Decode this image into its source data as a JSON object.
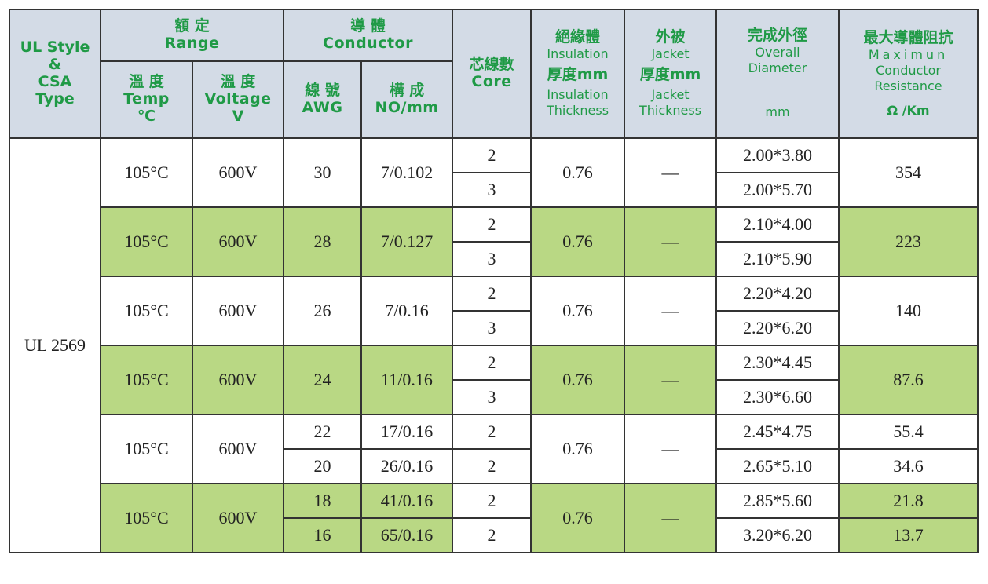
{
  "header": {
    "style_col": [
      "UL Style",
      "&",
      "CSA",
      "Type"
    ],
    "range": {
      "zh": "額 定",
      "en": "Range"
    },
    "temp": {
      "zh": "溫 度",
      "en": "Temp",
      "unit": "℃"
    },
    "voltage": {
      "zh": "溫 度",
      "en": "Voltage",
      "unit": "V"
    },
    "conductor": {
      "zh": "導 體",
      "en": "Conductor"
    },
    "awg": {
      "zh": "線 號",
      "en": "AWG"
    },
    "construction": {
      "zh": "構 成",
      "en": "NO/mm"
    },
    "core": {
      "zh": "芯線數",
      "en": "Core"
    },
    "insulation": {
      "zh": "絕緣體",
      "en": "Insulation",
      "zh2": "厚度mm",
      "en2a": "Insulation",
      "en2b": "Thickness"
    },
    "jacket": {
      "zh": "外被",
      "en": "Jacket",
      "zh2": "厚度mm",
      "en2a": "Jacket",
      "en2b": "Thickness"
    },
    "diameter": {
      "zh": "完成外徑",
      "en_a": "Overall",
      "en_b": "Diameter",
      "unit": "mm"
    },
    "resistance": {
      "zh": "最大導體阻抗",
      "en_a": "Maximun",
      "en_b": "Conductor",
      "en_c": "Resistance",
      "unit": "Ω /Km"
    }
  },
  "style_type": "UL 2569",
  "groups": [
    {
      "temp": "105°C",
      "voltage": "600V",
      "awg": [
        "30"
      ],
      "construction": [
        "7/0.102"
      ],
      "core": [
        "2",
        "3"
      ],
      "insulation": "0.76",
      "jacket": "—",
      "diameter": [
        "2.00*3.80",
        "2.00*5.70"
      ],
      "resistance": [
        "354"
      ]
    },
    {
      "temp": "105°C",
      "voltage": "600V",
      "awg": [
        "28"
      ],
      "construction": [
        "7/0.127"
      ],
      "core": [
        "2",
        "3"
      ],
      "insulation": "0.76",
      "jacket": "—",
      "diameter": [
        "2.10*4.00",
        "2.10*5.90"
      ],
      "resistance": [
        "223"
      ]
    },
    {
      "temp": "105°C",
      "voltage": "600V",
      "awg": [
        "26"
      ],
      "construction": [
        "7/0.16"
      ],
      "core": [
        "2",
        "3"
      ],
      "insulation": "0.76",
      "jacket": "—",
      "diameter": [
        "2.20*4.20",
        "2.20*6.20"
      ],
      "resistance": [
        "140"
      ]
    },
    {
      "temp": "105°C",
      "voltage": "600V",
      "awg": [
        "24"
      ],
      "construction": [
        "11/0.16"
      ],
      "core": [
        "2",
        "3"
      ],
      "insulation": "0.76",
      "jacket": "—",
      "diameter": [
        "2.30*4.45",
        "2.30*6.60"
      ],
      "resistance": [
        "87.6"
      ]
    },
    {
      "temp": "105°C",
      "voltage": "600V",
      "awg": [
        "22",
        "20"
      ],
      "construction": [
        "17/0.16",
        "26/0.16"
      ],
      "core": [
        "2",
        "2"
      ],
      "insulation": "0.76",
      "jacket": "—",
      "diameter": [
        "2.45*4.75",
        "2.65*5.10"
      ],
      "resistance": [
        "55.4",
        "34.6"
      ]
    },
    {
      "temp": "105°C",
      "voltage": "600V",
      "awg": [
        "18",
        "16"
      ],
      "construction": [
        "41/0.16",
        "65/0.16"
      ],
      "core": [
        "2",
        "2"
      ],
      "insulation": "0.76",
      "jacket": "—",
      "diameter": [
        "2.85*5.60",
        "3.20*6.20"
      ],
      "resistance": [
        "21.8",
        "13.7"
      ]
    }
  ],
  "colors": {
    "header_bg": "#d3dbe6",
    "header_text": "#1f9a46",
    "highlight_row": "#b9d884",
    "border": "#333333"
  }
}
